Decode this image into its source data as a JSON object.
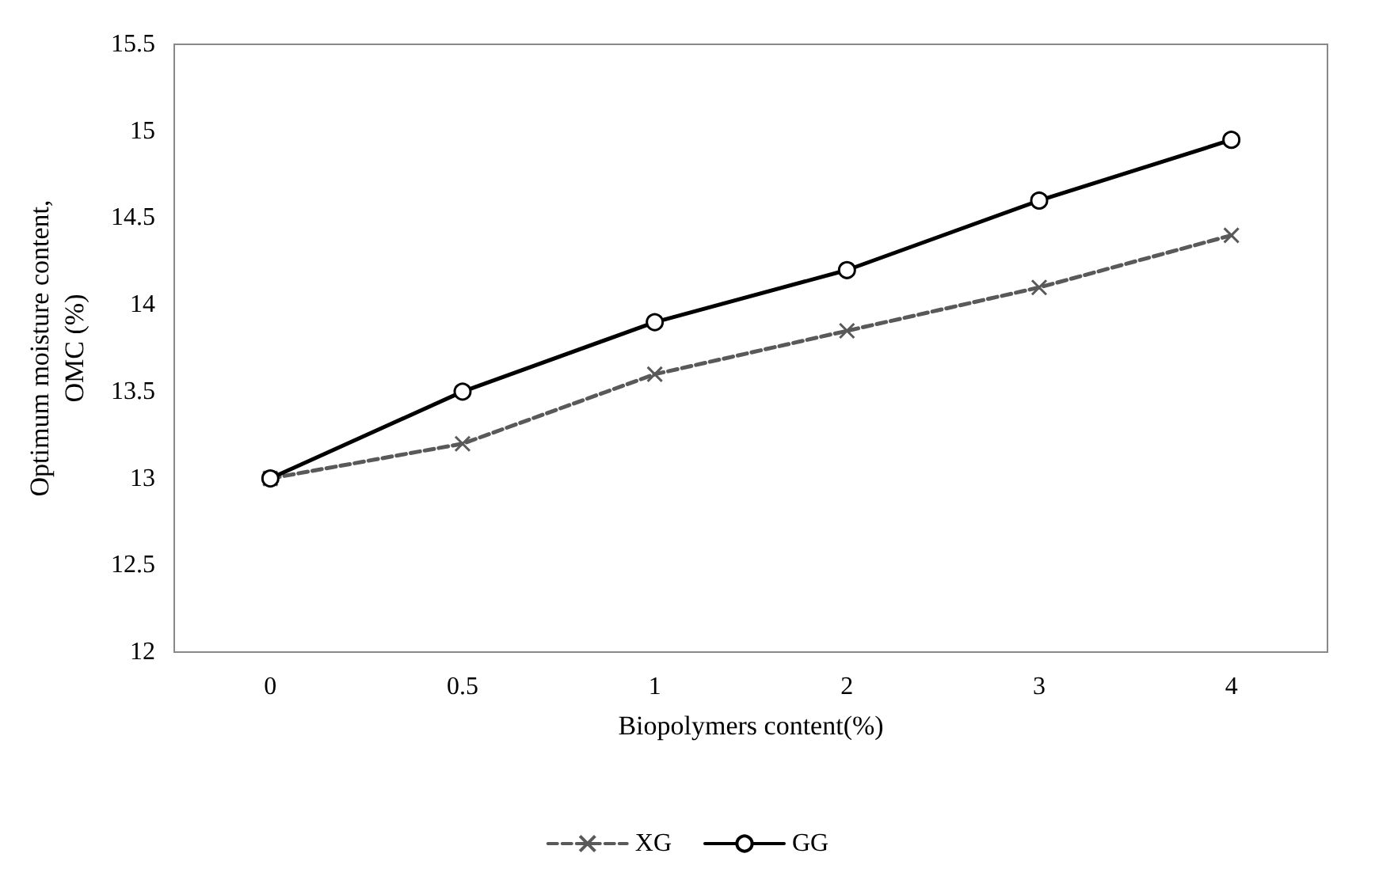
{
  "chart_data": {
    "type": "line",
    "xlabel": "Biopolymers content(%)",
    "ylabel": "Optimum moisture content,\nOMC (%)",
    "categories": [
      "0",
      "0.5",
      "1",
      "2",
      "3",
      "4"
    ],
    "series": [
      {
        "name": "XG",
        "color": "#595959",
        "values": [
          13,
          13.2,
          13.6,
          13.85,
          14.1,
          14.4
        ],
        "marker": "cross",
        "line_style": "dashed"
      },
      {
        "name": "GG",
        "color": "#000000",
        "values": [
          13,
          13.5,
          13.9,
          14.2,
          14.6,
          14.95
        ],
        "marker": "circle",
        "line_style": "solid"
      }
    ],
    "ylim": [
      12,
      15.5
    ],
    "yticks": [
      12,
      12.5,
      13,
      13.5,
      14,
      14.5,
      15,
      15.5
    ],
    "grid": false,
    "legend": "bottom"
  }
}
